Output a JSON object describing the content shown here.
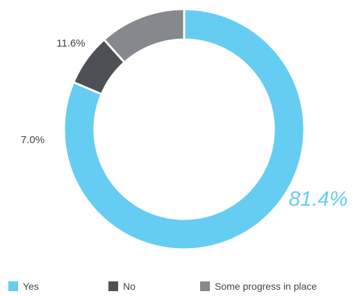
{
  "chart_data": {
    "type": "pie",
    "donut": true,
    "categories": [
      "Yes",
      "No",
      "Some progress in place"
    ],
    "values": [
      81.4,
      7.0,
      11.6
    ],
    "data_labels": [
      "81.4%",
      "7.0%",
      "11.6%"
    ],
    "colors": [
      "#66cdf2",
      "#4d5155",
      "#85888c"
    ],
    "label_colors": [
      "#66cdf2",
      "#444444",
      "#444444"
    ],
    "start_angle_deg": 0,
    "direction": "clockwise",
    "legend_position": "bottom"
  }
}
